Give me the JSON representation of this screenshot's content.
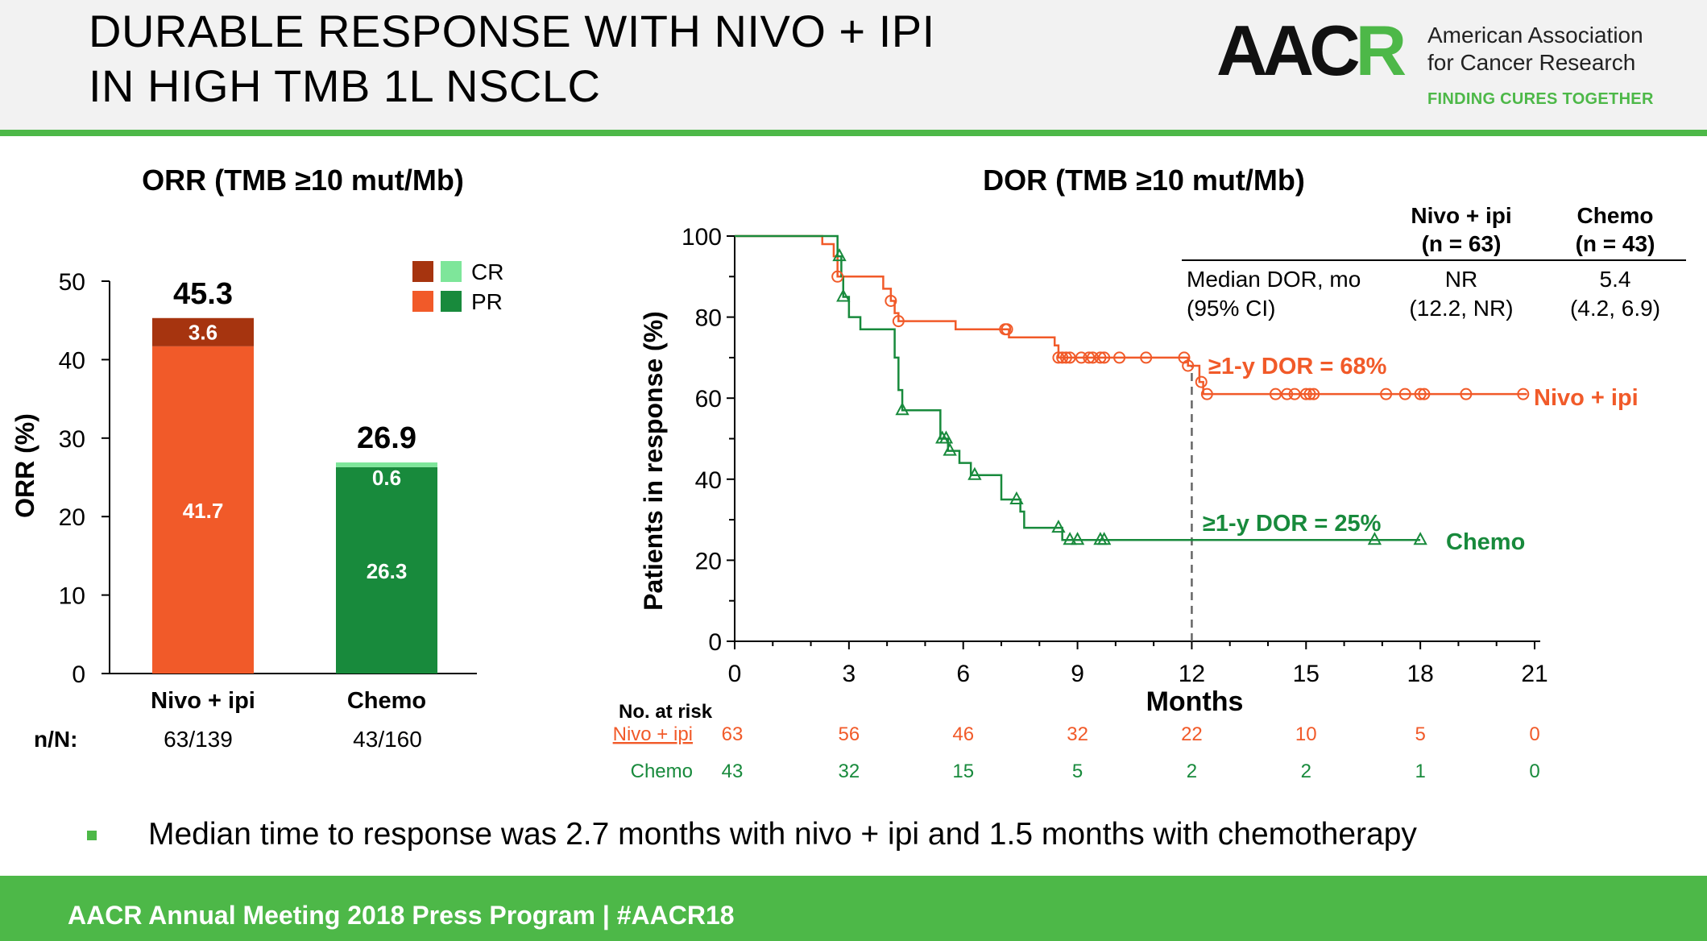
{
  "header": {
    "title_line1": "DURABLE RESPONSE WITH NIVO + IPI",
    "title_line2": "IN HIGH TMB 1L NSCLC",
    "logo": {
      "mark": "AACR",
      "org_line1": "American Association",
      "org_line2": "for Cancer Research",
      "tagline": "FINDING CURES TOGETHER"
    }
  },
  "bullet": {
    "text": "Median time to response was 2.7 months with nivo + ipi and 1.5 months with chemotherapy"
  },
  "footer": {
    "text": "AACR Annual Meeting 2018 Press Program  |  #AACR18"
  },
  "colors": {
    "nivo": "#f15a29",
    "nivo_cr": "#a6340f",
    "chemo": "#188a3c",
    "chemo_cr": "#7ee69a",
    "brand_green": "#4db848"
  },
  "chart_data": [
    {
      "type": "bar",
      "title": "ORR (TMB ≥10 mut/Mb)",
      "ylabel": "ORR (%)",
      "ylim": [
        0,
        50
      ],
      "yticks": [
        0,
        10,
        20,
        30,
        40,
        50
      ],
      "categories": [
        "Nivo + ipi",
        "Chemo"
      ],
      "stacked": true,
      "series": [
        {
          "name": "PR",
          "values": [
            41.7,
            26.3
          ],
          "labels": [
            "41.7",
            "26.3"
          ]
        },
        {
          "name": "CR",
          "values": [
            3.6,
            0.6
          ],
          "labels": [
            "3.6",
            "0.6"
          ]
        }
      ],
      "totals": [
        "45.3",
        "26.9"
      ],
      "legend_entries": [
        "CR",
        "PR"
      ],
      "legend_position": "top-right",
      "nn_label": "n/N:",
      "nn_values": [
        "63/139",
        "43/160"
      ]
    },
    {
      "type": "line",
      "subtype": "kaplan-meier",
      "title": "DOR (TMB ≥10 mut/Mb)",
      "xlabel": "Months",
      "ylabel": "Patients in response (%)",
      "xlim": [
        0,
        21
      ],
      "ylim": [
        0,
        100
      ],
      "xticks": [
        0,
        3,
        6,
        9,
        12,
        15,
        18,
        21
      ],
      "yticks": [
        0,
        20,
        40,
        60,
        80,
        100
      ],
      "series": [
        {
          "name": "Nivo + ipi",
          "steps": [
            [
              0,
              100
            ],
            [
              2.1,
              100
            ],
            [
              2.3,
              98
            ],
            [
              2.6,
              95
            ],
            [
              2.7,
              90
            ],
            [
              3.8,
              90
            ],
            [
              3.9,
              87
            ],
            [
              4.1,
              84
            ],
            [
              4.2,
              81
            ],
            [
              4.3,
              79
            ],
            [
              5.7,
              79
            ],
            [
              5.8,
              77
            ],
            [
              7.1,
              77
            ],
            [
              7.2,
              75
            ],
            [
              8.3,
              75
            ],
            [
              8.4,
              73
            ],
            [
              8.5,
              70
            ],
            [
              11.8,
              70
            ],
            [
              11.9,
              68
            ],
            [
              12.1,
              68
            ],
            [
              12.2,
              64
            ],
            [
              12.3,
              61
            ],
            [
              20.8,
              61
            ]
          ],
          "censor": [
            2.7,
            4.1,
            4.3,
            7.1,
            7.15,
            8.5,
            8.6,
            8.7,
            8.8,
            9.1,
            9.3,
            9.4,
            9.6,
            9.7,
            10.1,
            10.8,
            11.8,
            11.9,
            12.25,
            12.4,
            14.2,
            14.5,
            14.7,
            15.0,
            15.1,
            15.2,
            17.1,
            17.6,
            18.0,
            18.1,
            19.2,
            20.7
          ],
          "annotation": "≥1-y DOR = 68%"
        },
        {
          "name": "Chemo",
          "steps": [
            [
              0,
              100
            ],
            [
              2.6,
              100
            ],
            [
              2.7,
              95
            ],
            [
              2.8,
              90
            ],
            [
              2.85,
              85
            ],
            [
              3.0,
              80
            ],
            [
              3.3,
              77
            ],
            [
              4.1,
              77
            ],
            [
              4.2,
              70
            ],
            [
              4.3,
              62
            ],
            [
              4.4,
              57
            ],
            [
              5.2,
              57
            ],
            [
              5.4,
              50
            ],
            [
              5.6,
              47
            ],
            [
              5.9,
              44
            ],
            [
              6.2,
              41
            ],
            [
              6.9,
              41
            ],
            [
              7.0,
              35
            ],
            [
              7.5,
              32
            ],
            [
              7.6,
              28
            ],
            [
              8.5,
              28
            ],
            [
              8.6,
              25
            ],
            [
              18.0,
              25
            ]
          ],
          "censor": [
            2.75,
            2.85,
            4.4,
            5.45,
            5.55,
            5.65,
            6.3,
            7.4,
            8.5,
            8.8,
            9.0,
            9.6,
            9.7,
            16.8,
            18.0
          ],
          "annotation": "≥1-y DOR = 25%"
        }
      ],
      "reference_line_x": 12,
      "table": {
        "col_headers": [
          [
            "Nivo + ipi",
            "(n = 63)"
          ],
          [
            "Chemo",
            "(n = 43)"
          ]
        ],
        "row_label": [
          "Median DOR, mo",
          "(95% CI)"
        ],
        "values": [
          [
            "NR",
            "(12.2, NR)"
          ],
          [
            "5.4",
            "(4.2, 6.9)"
          ]
        ]
      },
      "risk_table": {
        "title": "No. at risk",
        "rows": [
          {
            "name": "Nivo + ipi",
            "values": [
              63,
              56,
              46,
              32,
              22,
              10,
              5,
              0
            ]
          },
          {
            "name": "Chemo",
            "values": [
              43,
              32,
              15,
              5,
              2,
              2,
              1,
              0
            ]
          }
        ]
      }
    }
  ]
}
